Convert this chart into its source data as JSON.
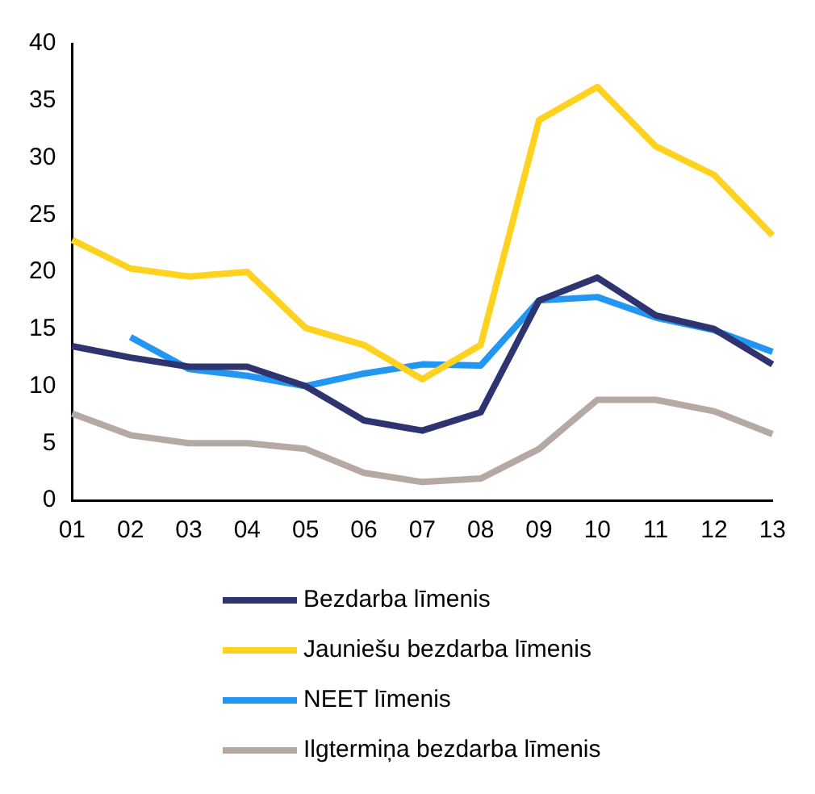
{
  "chart_data": {
    "type": "line",
    "categories": [
      "01",
      "02",
      "03",
      "04",
      "05",
      "06",
      "07",
      "08",
      "09",
      "10",
      "11",
      "12",
      "13"
    ],
    "series": [
      {
        "name": "Bezdarba līmenis",
        "color": "#2e3470",
        "values": [
          13.5,
          12.5,
          11.7,
          11.7,
          10.0,
          7.0,
          6.1,
          7.7,
          17.5,
          19.5,
          16.2,
          15.0,
          11.9
        ]
      },
      {
        "name": "Jauniešu bezdarba līmenis",
        "color": "#ffd21f",
        "values": [
          22.8,
          20.3,
          19.6,
          20.0,
          15.1,
          13.6,
          10.6,
          13.6,
          33.3,
          36.2,
          31.0,
          28.5,
          23.2
        ]
      },
      {
        "name": "NEET līmenis",
        "color": "#2196f3",
        "values": [
          null,
          14.3,
          11.5,
          10.9,
          10.0,
          11.1,
          11.9,
          11.8,
          17.5,
          17.8,
          16.0,
          14.9,
          13.0
        ]
      },
      {
        "name": "Ilgtermiņa bezdarba līmenis",
        "color": "#b5a9a3",
        "values": [
          7.6,
          5.7,
          5.0,
          5.0,
          4.5,
          2.4,
          1.6,
          1.9,
          4.5,
          8.8,
          8.8,
          7.8,
          5.8
        ]
      }
    ],
    "ylim": [
      0,
      40
    ],
    "yticks": [
      0,
      5,
      10,
      15,
      20,
      25,
      30,
      35,
      40
    ],
    "grid": false,
    "legend": "bottom",
    "marker": "none",
    "line_style": "solid"
  }
}
